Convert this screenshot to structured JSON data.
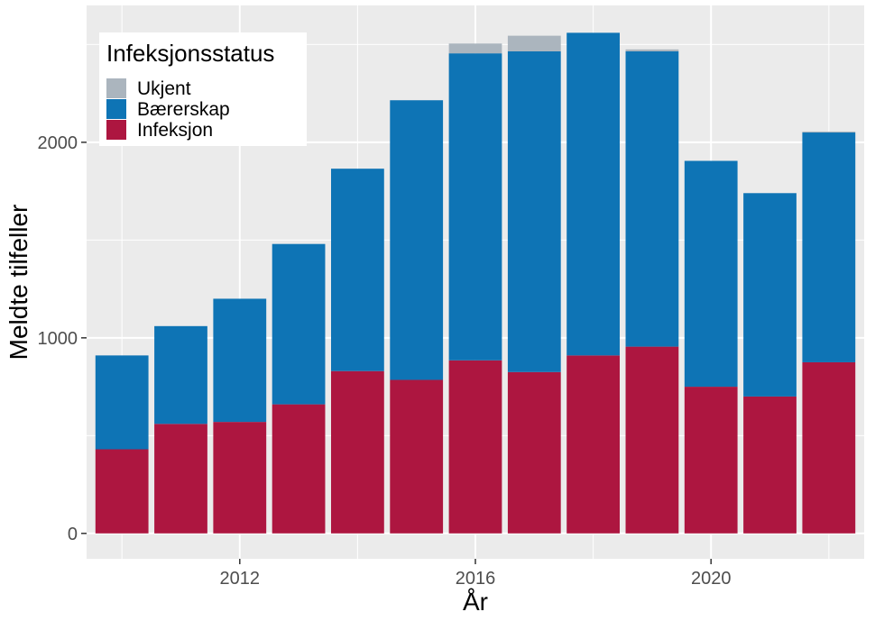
{
  "chart_data": {
    "type": "bar",
    "stacked": true,
    "x": [
      2010,
      2011,
      2012,
      2013,
      2014,
      2015,
      2016,
      2017,
      2018,
      2019,
      2020,
      2021,
      2022
    ],
    "series": [
      {
        "name": "Infeksjon",
        "color": "#AD1640",
        "values": [
          430,
          560,
          570,
          660,
          830,
          785,
          885,
          825,
          910,
          955,
          750,
          700,
          875
        ]
      },
      {
        "name": "Bærerskap",
        "color": "#0E74B5",
        "values": [
          480,
          500,
          630,
          820,
          1035,
          1430,
          1570,
          1640,
          1650,
          1510,
          1155,
          1040,
          1175
        ]
      },
      {
        "name": "Ukjent",
        "color": "#ABB5BE",
        "values": [
          0,
          0,
          0,
          0,
          0,
          0,
          50,
          80,
          0,
          10,
          0,
          0,
          5
        ]
      }
    ],
    "xlabel": "År",
    "ylabel": "Meldte tilfeller",
    "x_ticks": [
      "2012",
      "2016",
      "2020"
    ],
    "y_ticks": [
      "0",
      "1000",
      "2000"
    ],
    "xlim": [
      2009.4,
      2022.6
    ],
    "ylim": [
      -130,
      2700
    ],
    "legend": {
      "title": "Infeksjonsstatus",
      "position": "top-left",
      "order": [
        "Ukjent",
        "Bærerskap",
        "Infeksjon"
      ]
    },
    "grid": true,
    "panel_background": "#EBEBEB",
    "grid_color": "#FFFFFF"
  }
}
